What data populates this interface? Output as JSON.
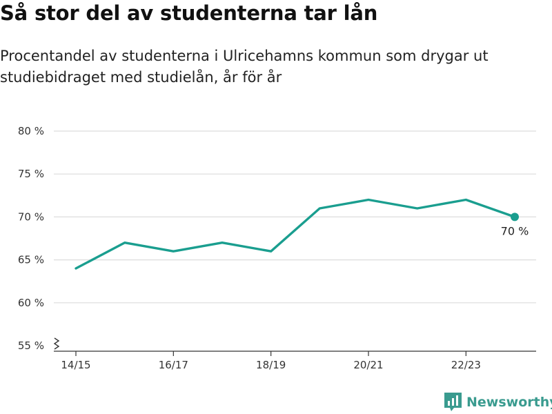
{
  "header": {
    "title": "Så stor del av studenterna tar lån",
    "subtitle": "Procentandel av studenterna i Ulricehamns kommun som drygar ut studiebidraget med studielån, år för år"
  },
  "brand": {
    "name": "Newsworthy",
    "icon": "newsworthy-logo-icon",
    "color": "#3a9b8f"
  },
  "chart_data": {
    "type": "line",
    "x": [
      "14/15",
      "15/16",
      "16/17",
      "17/18",
      "18/19",
      "19/20",
      "20/21",
      "21/22",
      "22/23",
      "23/24"
    ],
    "x_tick_labels": [
      "14/15",
      "",
      "16/17",
      "",
      "18/19",
      "",
      "20/21",
      "",
      "22/23",
      ""
    ],
    "series": [
      {
        "values": [
          64,
          67,
          66,
          67,
          66,
          71,
          72,
          71,
          72,
          70
        ],
        "color": "#1a9e8f"
      }
    ],
    "ylim": [
      55,
      80
    ],
    "y_ticks": [
      55,
      60,
      65,
      70,
      75,
      80
    ],
    "y_tick_labels": [
      "55 %",
      "60 %",
      "65 %",
      "70 %",
      "75 %",
      "80 %"
    ],
    "axis_break": true,
    "last_point_label": "70 %",
    "grid": true,
    "xlabel": "",
    "ylabel": ""
  }
}
